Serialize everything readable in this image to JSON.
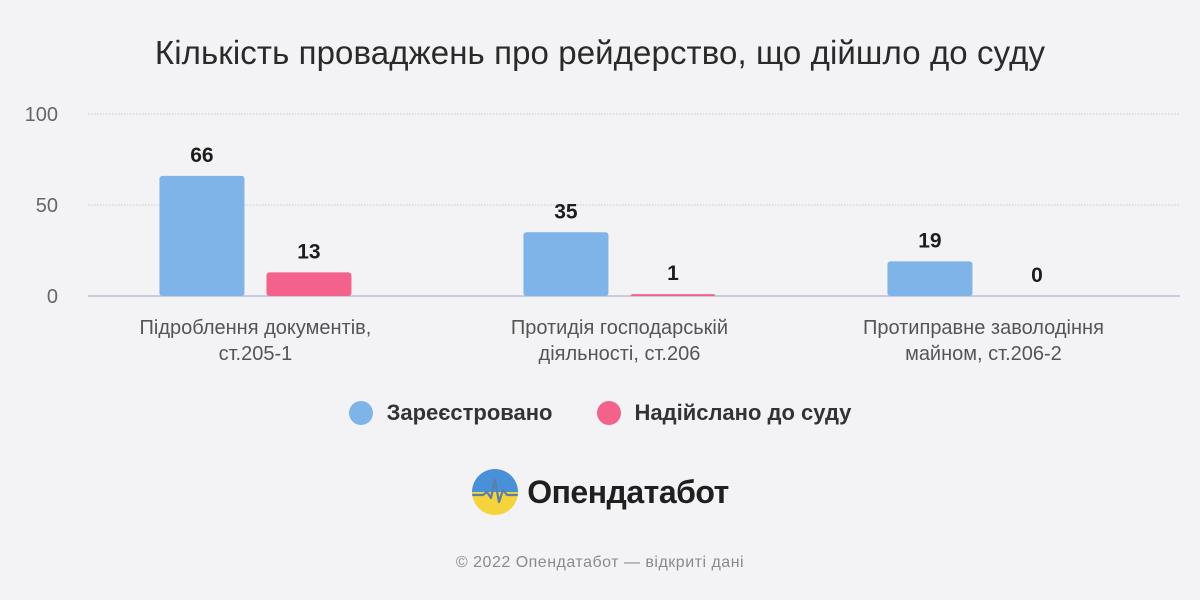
{
  "chart_data": {
    "type": "bar",
    "title": "Кількість проваджень про рейдерство, що дійшло до суду",
    "categories": [
      [
        "Підроблення документів,",
        "ст.205-1"
      ],
      [
        "Протидія господарській",
        "діяльності, ст.206"
      ],
      [
        "Протиправне заволодіння",
        "майном, ст.206-2"
      ]
    ],
    "series": [
      {
        "name": "Зареєстровано",
        "values": [
          66,
          35,
          19
        ],
        "color": "#7fb4e8"
      },
      {
        "name": "Надійслано до суду",
        "values": [
          13,
          1,
          0
        ],
        "color": "#f2628a"
      }
    ],
    "ylim": [
      0,
      100
    ],
    "yticks": [
      0,
      50,
      100
    ],
    "grid": true,
    "legend_position": "bottom",
    "data_labels": true
  },
  "brand": {
    "name": "Опендатабот",
    "logo_icon": "opendatabot-logo-icon",
    "logo_colors": {
      "top": "#4a90d9",
      "bottom": "#f5d33b",
      "line": "#5a7fa8"
    }
  },
  "footer": {
    "text": "© 2022 Опендатабот — відкриті дані"
  }
}
